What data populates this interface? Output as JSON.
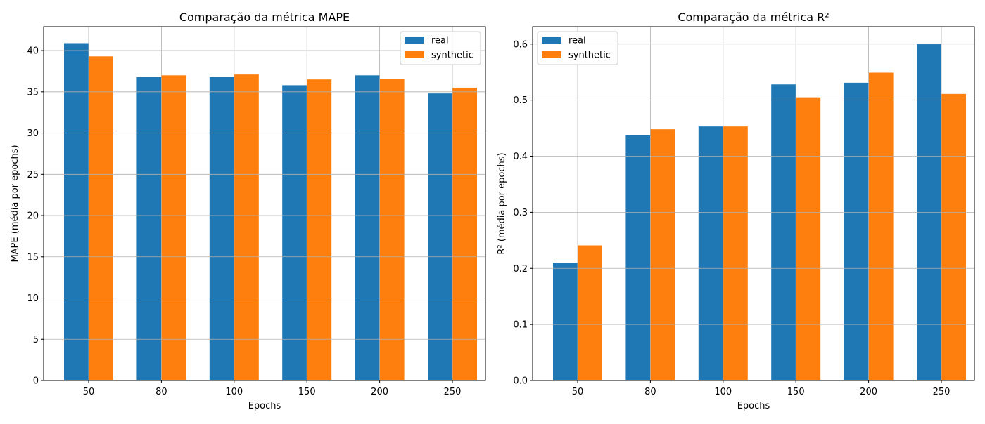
{
  "chart_data": [
    {
      "type": "bar",
      "title": "Comparação da métrica MAPE",
      "xlabel": "Epochs",
      "ylabel": "MAPE (média por epochs)",
      "categories": [
        "50",
        "80",
        "100",
        "150",
        "200",
        "250"
      ],
      "series": [
        {
          "name": "real",
          "color": "#1f77b4",
          "values": [
            40.9,
            36.8,
            36.8,
            35.8,
            37.0,
            34.8
          ]
        },
        {
          "name": "synthetic",
          "color": "#ff7f0e",
          "values": [
            39.3,
            37.0,
            37.1,
            36.5,
            36.6,
            35.5
          ]
        }
      ],
      "ylim": [
        0,
        42.9
      ],
      "yticks": [
        0,
        5,
        10,
        15,
        20,
        25,
        30,
        35,
        40
      ],
      "ytick_labels": [
        "0",
        "5",
        "10",
        "15",
        "20",
        "25",
        "30",
        "35",
        "40"
      ],
      "grid": true,
      "legend_position": "top-right"
    },
    {
      "type": "bar",
      "title": "Comparação da métrica R²",
      "xlabel": "Epochs",
      "ylabel": "R² (média por epochs)",
      "categories": [
        "50",
        "80",
        "100",
        "150",
        "200",
        "250"
      ],
      "series": [
        {
          "name": "real",
          "color": "#1f77b4",
          "values": [
            0.21,
            0.437,
            0.453,
            0.528,
            0.531,
            0.601
          ]
        },
        {
          "name": "synthetic",
          "color": "#ff7f0e",
          "values": [
            0.241,
            0.448,
            0.453,
            0.505,
            0.549,
            0.511
          ]
        }
      ],
      "ylim": [
        0,
        0.631
      ],
      "yticks": [
        0,
        0.1,
        0.2,
        0.3,
        0.4,
        0.5,
        0.6
      ],
      "ytick_labels": [
        "0.0",
        "0.1",
        "0.2",
        "0.3",
        "0.4",
        "0.5",
        "0.6"
      ],
      "grid": true,
      "legend_position": "top-left"
    }
  ]
}
